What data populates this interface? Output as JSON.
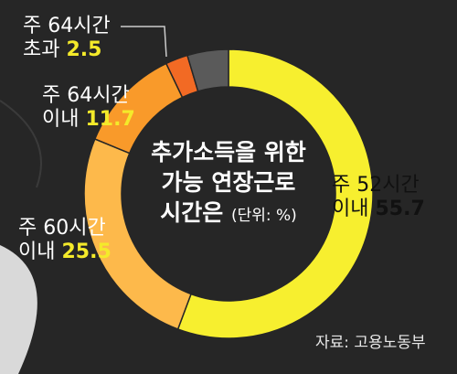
{
  "chart_data": {
    "type": "pie",
    "variant": "donut",
    "title_lines": [
      "추가소득을 위한",
      "가능 연장근로",
      "시간은"
    ],
    "unit_label": "(단위: %)",
    "slices": [
      {
        "label_lines": [
          "주 52시간",
          "이내"
        ],
        "value": 55.7,
        "display": "55.7",
        "color": "#f7ef2f"
      },
      {
        "label_lines": [
          "주 60시간",
          "이내"
        ],
        "value": 25.5,
        "display": "25.5",
        "color": "#fdb94b"
      },
      {
        "label_lines": [
          "주 64시간",
          "이내"
        ],
        "value": 11.7,
        "display": "11.7",
        "color": "#f99a2a"
      },
      {
        "label_lines": [
          "주 64시간",
          "초과"
        ],
        "value": 2.5,
        "display": "2.5",
        "color": "#f26a24"
      },
      {
        "value": 4.6,
        "color": "#5a5a5a"
      }
    ],
    "source": "자료: 고용노동부"
  }
}
